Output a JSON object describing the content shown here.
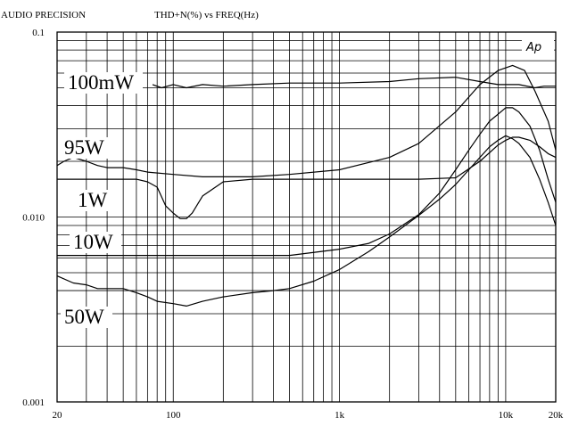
{
  "header": {
    "brand": "AUDIO PRECISION",
    "title": "THD+N(%)  vs   FREQ(Hz)",
    "logo": "Ap"
  },
  "chart_data": {
    "type": "line",
    "title": "THD+N(%)  vs   FREQ(Hz)",
    "xlabel": "",
    "ylabel": "",
    "xscale": "log",
    "yscale": "log",
    "xlim": [
      20,
      20000
    ],
    "ylim": [
      0.001,
      0.1
    ],
    "grid": true,
    "x_tick_labels": [
      {
        "value": 20,
        "label": "20"
      },
      {
        "value": 100,
        "label": "100"
      },
      {
        "value": 1000,
        "label": "1k"
      },
      {
        "value": 10000,
        "label": "10k"
      },
      {
        "value": 20000,
        "label": "20k"
      }
    ],
    "y_tick_labels": [
      {
        "value": 0.1,
        "label": "0.1"
      },
      {
        "value": 0.01,
        "label": "0.010"
      },
      {
        "value": 0.001,
        "label": "0.001"
      }
    ],
    "series": [
      {
        "name": "100mW",
        "x": [
          75,
          85,
          100,
          120,
          150,
          200,
          300,
          500,
          1000,
          2000,
          3000,
          5000,
          7000,
          9000,
          12000,
          15000,
          17000,
          20000
        ],
        "y": [
          0.052,
          0.05,
          0.052,
          0.05,
          0.052,
          0.051,
          0.052,
          0.053,
          0.053,
          0.054,
          0.056,
          0.057,
          0.054,
          0.052,
          0.052,
          0.05,
          0.051,
          0.051
        ]
      },
      {
        "name": "95W",
        "x": [
          20,
          22,
          25,
          30,
          35,
          40,
          50,
          60,
          70,
          100,
          150,
          200,
          300,
          500,
          1000,
          2000,
          3000,
          5000,
          7000,
          9000,
          11000,
          13000,
          15000,
          18000,
          20000
        ],
        "y": [
          0.019,
          0.02,
          0.021,
          0.02,
          0.019,
          0.0185,
          0.0185,
          0.018,
          0.0175,
          0.017,
          0.0165,
          0.0165,
          0.0165,
          0.017,
          0.018,
          0.021,
          0.025,
          0.037,
          0.052,
          0.062,
          0.066,
          0.062,
          0.048,
          0.033,
          0.023
        ]
      },
      {
        "name": "1W",
        "x": [
          20,
          30,
          40,
          50,
          60,
          70,
          80,
          90,
          100,
          110,
          120,
          130,
          150,
          200,
          300,
          500,
          1000,
          2000,
          3000,
          5000,
          7000,
          9000,
          10000,
          11000,
          12000,
          14000,
          16000,
          18000,
          20000
        ],
        "y": [
          0.016,
          0.016,
          0.016,
          0.016,
          0.016,
          0.0155,
          0.0145,
          0.0115,
          0.0105,
          0.0098,
          0.0098,
          0.0105,
          0.013,
          0.0155,
          0.016,
          0.016,
          0.016,
          0.016,
          0.016,
          0.0163,
          0.02,
          0.0245,
          0.026,
          0.027,
          0.027,
          0.026,
          0.024,
          0.022,
          0.021
        ]
      },
      {
        "name": "10W",
        "x": [
          20,
          30,
          50,
          70,
          100,
          150,
          200,
          300,
          500,
          1000,
          1500,
          2000,
          3000,
          4000,
          5000,
          6000,
          7000,
          8000,
          9000,
          10000,
          11000,
          12000,
          14000,
          16000,
          18000,
          20000
        ],
        "y": [
          0.0062,
          0.0062,
          0.0062,
          0.0062,
          0.0062,
          0.0062,
          0.0062,
          0.0062,
          0.0062,
          0.0067,
          0.0072,
          0.0081,
          0.0103,
          0.0135,
          0.018,
          0.023,
          0.028,
          0.033,
          0.036,
          0.039,
          0.039,
          0.037,
          0.031,
          0.023,
          0.016,
          0.012
        ]
      },
      {
        "name": "50W",
        "x": [
          20,
          25,
          30,
          35,
          40,
          50,
          60,
          70,
          80,
          100,
          120,
          150,
          200,
          300,
          400,
          500,
          700,
          1000,
          1500,
          2000,
          3000,
          4000,
          5000,
          6000,
          7000,
          8000,
          9000,
          10000,
          11000,
          12000,
          14000,
          16000,
          18000,
          20000
        ],
        "y": [
          0.0048,
          0.0044,
          0.0043,
          0.0041,
          0.0041,
          0.0041,
          0.0039,
          0.0037,
          0.0035,
          0.0034,
          0.0033,
          0.0035,
          0.0037,
          0.0039,
          0.004,
          0.0041,
          0.0045,
          0.0052,
          0.0065,
          0.0078,
          0.0102,
          0.0125,
          0.015,
          0.018,
          0.021,
          0.024,
          0.026,
          0.0275,
          0.0265,
          0.025,
          0.021,
          0.016,
          0.012,
          0.009
        ]
      }
    ],
    "annotations": [
      {
        "text": "100mW"
      },
      {
        "text": "95W"
      },
      {
        "text": "1W"
      },
      {
        "text": "10W"
      },
      {
        "text": "50W"
      }
    ],
    "colors": {
      "line": "#000000",
      "grid": "#000000",
      "background": "#ffffff"
    }
  }
}
